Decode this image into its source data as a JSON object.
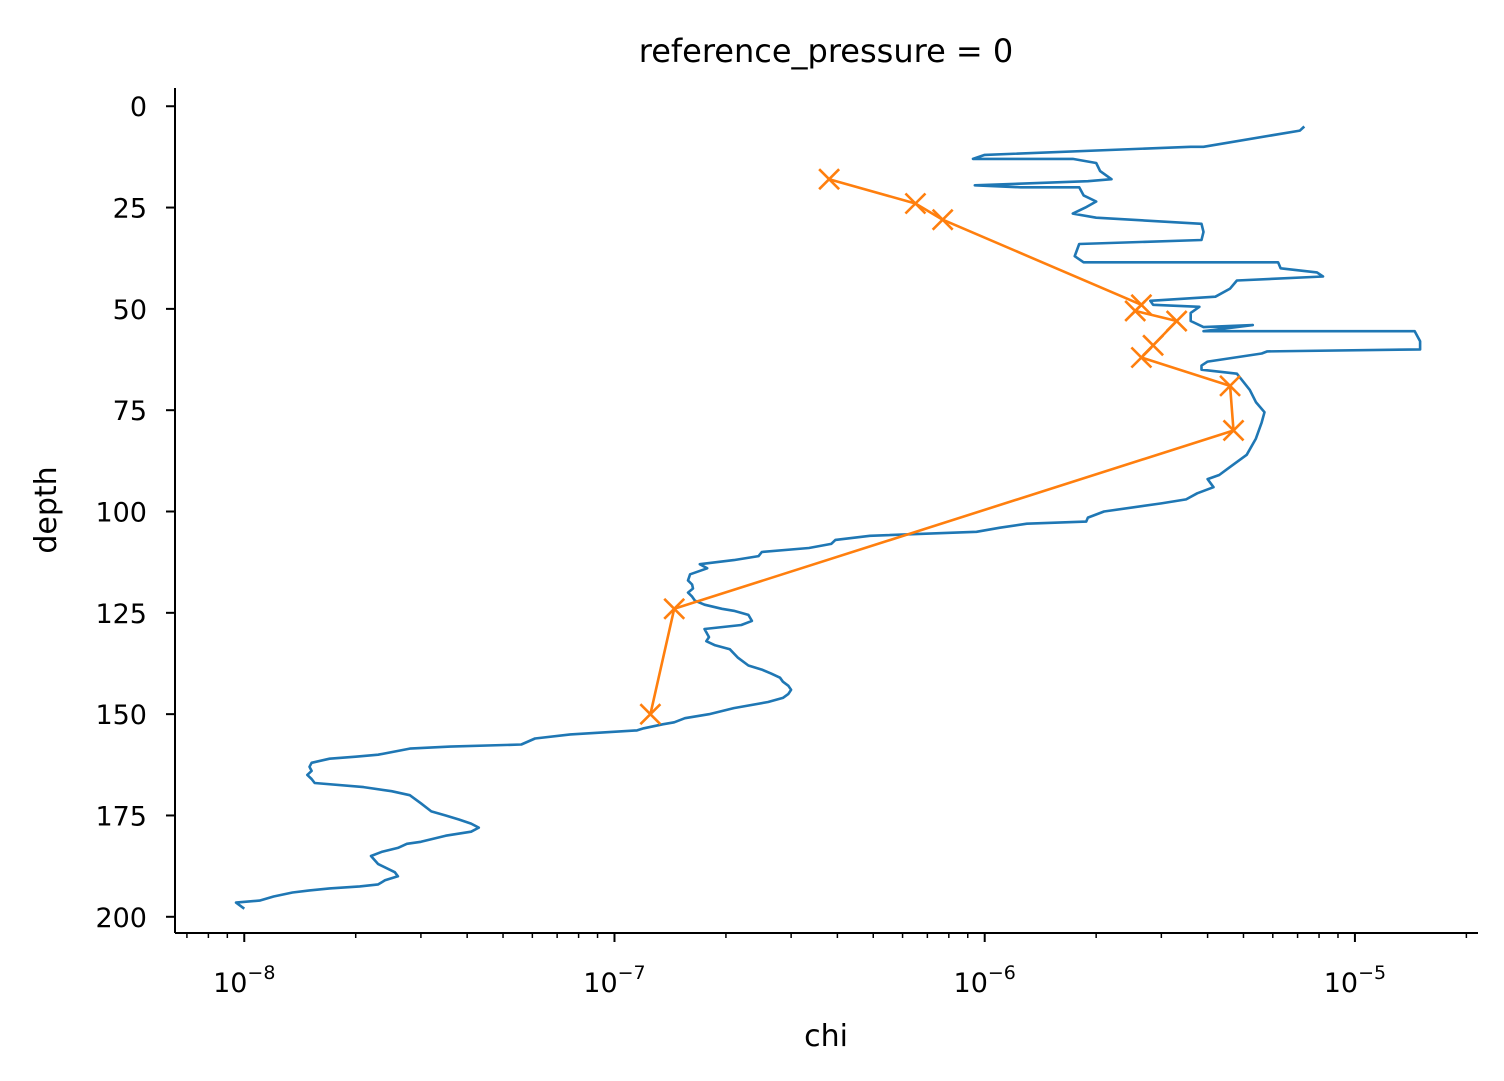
{
  "chart_data": {
    "type": "line",
    "title": "reference_pressure = 0",
    "xlabel": "chi",
    "ylabel": "depth",
    "x_scale": "log",
    "xlim": [
      6.5e-09,
      2.15e-05
    ],
    "ylim": [
      204,
      -4.5
    ],
    "y_inverted": true,
    "x_ticks": [
      {
        "value": 1e-08,
        "base": "10",
        "exp": "−8"
      },
      {
        "value": 1e-07,
        "base": "10",
        "exp": "−7"
      },
      {
        "value": 1e-06,
        "base": "10",
        "exp": "−6"
      },
      {
        "value": 1e-05,
        "base": "10",
        "exp": "−5"
      }
    ],
    "y_ticks": [
      0,
      25,
      50,
      75,
      100,
      125,
      150,
      175,
      200
    ],
    "grid": false,
    "series": [
      {
        "color": "#1f77b4",
        "marker": "none",
        "points": [
          [
            7.3e-06,
            5
          ],
          [
            7.1e-06,
            6
          ],
          [
            3.9e-06,
            10
          ],
          [
            3.6e-06,
            10
          ],
          [
            1e-06,
            12
          ],
          [
            9.3e-07,
            13
          ],
          [
            1.55e-06,
            13
          ],
          [
            1.73e-06,
            13
          ],
          [
            2e-06,
            14
          ],
          [
            2.05e-06,
            16
          ],
          [
            2.2e-06,
            18
          ],
          [
            1.9e-06,
            18.5
          ],
          [
            9.4e-07,
            19.5
          ],
          [
            1.25e-06,
            20
          ],
          [
            1.8e-06,
            20
          ],
          [
            1.85e-06,
            22
          ],
          [
            2e-06,
            23.5
          ],
          [
            1.87e-06,
            25
          ],
          [
            1.73e-06,
            26.5
          ],
          [
            2e-06,
            27.5
          ],
          [
            3.85e-06,
            29
          ],
          [
            3.9e-06,
            31
          ],
          [
            3.85e-06,
            33
          ],
          [
            1.8e-06,
            34
          ],
          [
            1.75e-06,
            37
          ],
          [
            1.85e-06,
            38.5
          ],
          [
            6.2e-06,
            38.5
          ],
          [
            6.3e-06,
            40
          ],
          [
            7.9e-06,
            41
          ],
          [
            8.2e-06,
            42
          ],
          [
            4.8e-06,
            43
          ],
          [
            4.6e-06,
            45
          ],
          [
            4.2e-06,
            47
          ],
          [
            2.8e-06,
            48
          ],
          [
            2.85e-06,
            49
          ],
          [
            3.8e-06,
            49.5
          ],
          [
            3.6e-06,
            51
          ],
          [
            3.6e-06,
            53
          ],
          [
            3.9e-06,
            54.5
          ],
          [
            5.3e-06,
            54
          ],
          [
            3.9e-06,
            55.5
          ],
          [
            1.45e-05,
            55.5
          ],
          [
            1.5e-05,
            58
          ],
          [
            1.5e-05,
            60
          ],
          [
            5.8e-06,
            60.5
          ],
          [
            5.6e-06,
            61
          ],
          [
            4e-06,
            63
          ],
          [
            3.85e-06,
            64
          ],
          [
            3.85e-06,
            65
          ],
          [
            4.8e-06,
            66
          ],
          [
            5.2e-06,
            70
          ],
          [
            5.4e-06,
            73
          ],
          [
            5.7e-06,
            75.5
          ],
          [
            5.6e-06,
            78
          ],
          [
            5.4e-06,
            82
          ],
          [
            5.1e-06,
            86
          ],
          [
            4.6e-06,
            89
          ],
          [
            4.3e-06,
            91
          ],
          [
            4e-06,
            92
          ],
          [
            4.15e-06,
            94
          ],
          [
            3.75e-06,
            95.5
          ],
          [
            3.5e-06,
            97
          ],
          [
            3e-06,
            98
          ],
          [
            2.1e-06,
            100
          ],
          [
            1.9e-06,
            101.5
          ],
          [
            1.88e-06,
            102.5
          ],
          [
            1.3e-06,
            103
          ],
          [
            1.1e-06,
            104
          ],
          [
            9.5e-07,
            105
          ],
          [
            4.9e-07,
            106
          ],
          [
            3.95e-07,
            107
          ],
          [
            3.85e-07,
            108
          ],
          [
            3.35e-07,
            109
          ],
          [
            2.5e-07,
            110
          ],
          [
            2.45e-07,
            111
          ],
          [
            2.1e-07,
            112
          ],
          [
            1.7e-07,
            113
          ],
          [
            1.78e-07,
            114
          ],
          [
            1.6e-07,
            115.5
          ],
          [
            1.58e-07,
            117
          ],
          [
            1.62e-07,
            118
          ],
          [
            1.63e-07,
            119
          ],
          [
            1.58e-07,
            120
          ],
          [
            1.62e-07,
            121
          ],
          [
            1.65e-07,
            122
          ],
          [
            1.75e-07,
            123
          ],
          [
            1.95e-07,
            124
          ],
          [
            2.1e-07,
            124.5
          ],
          [
            2.3e-07,
            125.5
          ],
          [
            2.35e-07,
            127
          ],
          [
            2.2e-07,
            128
          ],
          [
            1.75e-07,
            129
          ],
          [
            1.8e-07,
            131
          ],
          [
            1.77e-07,
            132
          ],
          [
            1.87e-07,
            133
          ],
          [
            2.05e-07,
            134
          ],
          [
            2.15e-07,
            136
          ],
          [
            2.3e-07,
            138
          ],
          [
            2.5e-07,
            139
          ],
          [
            2.65e-07,
            140
          ],
          [
            2.8e-07,
            141
          ],
          [
            2.85e-07,
            142
          ],
          [
            2.95e-07,
            143
          ],
          [
            3e-07,
            144
          ],
          [
            2.95e-07,
            145
          ],
          [
            2.85e-07,
            146
          ],
          [
            2.6e-07,
            147
          ],
          [
            2.1e-07,
            148.5
          ],
          [
            1.8e-07,
            150
          ],
          [
            1.55e-07,
            151
          ],
          [
            1.45e-07,
            152
          ],
          [
            1.35e-07,
            152.5
          ],
          [
            1.2e-07,
            153.5
          ],
          [
            1.15e-07,
            154
          ],
          [
            7.6e-08,
            155
          ],
          [
            6.1e-08,
            156
          ],
          [
            5.6e-08,
            157.5
          ],
          [
            3.6e-08,
            158
          ],
          [
            2.8e-08,
            158.5
          ],
          [
            2.3e-08,
            160
          ],
          [
            2e-08,
            160.5
          ],
          [
            1.7e-08,
            161
          ],
          [
            1.52e-08,
            162
          ],
          [
            1.5e-08,
            163
          ],
          [
            1.52e-08,
            164
          ],
          [
            1.48e-08,
            165
          ],
          [
            1.52e-08,
            166
          ],
          [
            1.55e-08,
            167
          ],
          [
            2.1e-08,
            168
          ],
          [
            2.5e-08,
            169
          ],
          [
            2.8e-08,
            170
          ],
          [
            3e-08,
            172
          ],
          [
            3.2e-08,
            174
          ],
          [
            3.5e-08,
            175
          ],
          [
            3.8e-08,
            176
          ],
          [
            4.1e-08,
            177
          ],
          [
            4.3e-08,
            178
          ],
          [
            4.1e-08,
            179
          ],
          [
            3.5e-08,
            180
          ],
          [
            3e-08,
            181.5
          ],
          [
            2.75e-08,
            182
          ],
          [
            2.6e-08,
            183
          ],
          [
            2.35e-08,
            184
          ],
          [
            2.2e-08,
            185
          ],
          [
            2.3e-08,
            187
          ],
          [
            2.55e-08,
            189
          ],
          [
            2.6e-08,
            190
          ],
          [
            2.4e-08,
            191
          ],
          [
            2.3e-08,
            192
          ],
          [
            2.05e-08,
            192.5
          ],
          [
            1.7e-08,
            193
          ],
          [
            1.5e-08,
            193.5
          ],
          [
            1.35e-08,
            194
          ],
          [
            1.2e-08,
            195
          ],
          [
            1.1e-08,
            196
          ],
          [
            9.5e-09,
            196.5
          ],
          [
            1e-08,
            198
          ]
        ]
      },
      {
        "color": "#ff7f0e",
        "marker": "x",
        "points": [
          [
            3.8e-07,
            18
          ],
          [
            6.5e-07,
            24
          ],
          [
            7.7e-07,
            28
          ],
          [
            2.65e-06,
            49
          ],
          [
            2.55e-06,
            50.5
          ],
          [
            3.3e-06,
            53
          ],
          [
            2.85e-06,
            59
          ],
          [
            2.65e-06,
            62
          ],
          [
            4.6e-06,
            69
          ],
          [
            4.7e-06,
            80
          ],
          [
            1.45e-07,
            124
          ],
          [
            1.25e-07,
            150
          ]
        ]
      }
    ]
  }
}
